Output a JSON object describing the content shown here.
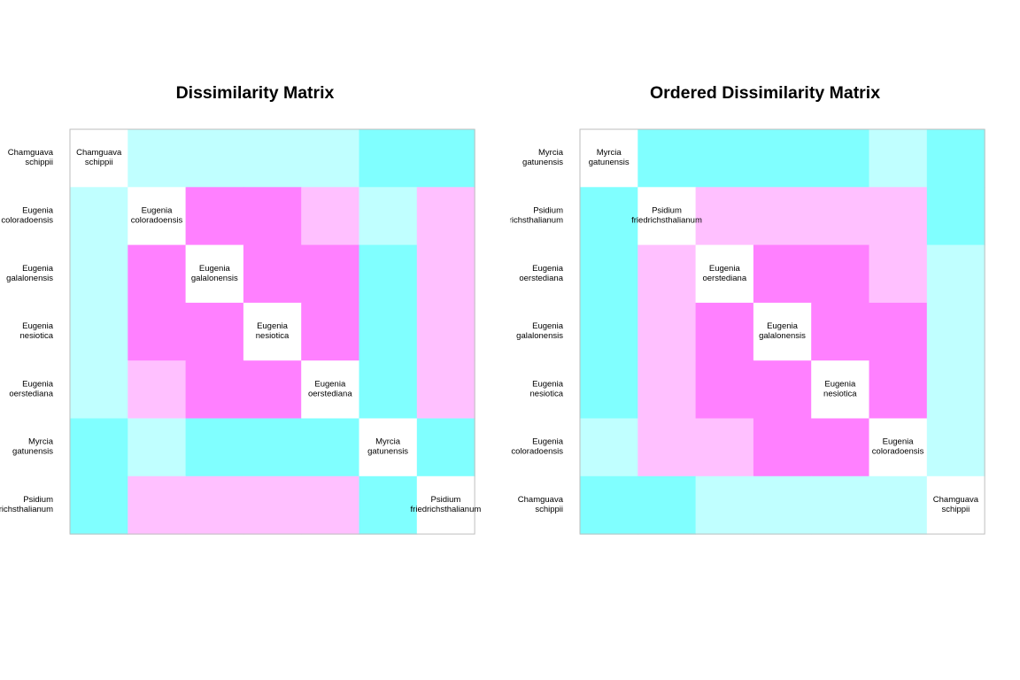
{
  "colors": {
    "low": "#ff80ff",
    "low_mid": "#ffc0ff",
    "high_mid": "#c0ffff",
    "high": "#80ffff",
    "diagonal": "#ffffff",
    "frame": "#bebebe"
  },
  "chart_data": [
    {
      "type": "heatmap",
      "title": "Dissimilarity Matrix",
      "labels": [
        [
          "Chamguava",
          "schippii"
        ],
        [
          "Eugenia",
          "coloradoensis"
        ],
        [
          "Eugenia",
          "galalonensis"
        ],
        [
          "Eugenia",
          "nesiotica"
        ],
        [
          "Eugenia",
          "oerstediana"
        ],
        [
          "Myrcia",
          "gatunensis"
        ],
        [
          "Psidium",
          "friedrichsthalianum"
        ]
      ],
      "levels": [
        [
          0,
          3,
          3,
          3,
          3,
          4,
          4
        ],
        [
          3,
          0,
          1,
          1,
          2,
          3,
          2
        ],
        [
          3,
          1,
          0,
          1,
          1,
          4,
          2
        ],
        [
          3,
          1,
          1,
          0,
          1,
          4,
          2
        ],
        [
          3,
          2,
          1,
          1,
          0,
          4,
          2
        ],
        [
          4,
          3,
          4,
          4,
          4,
          0,
          4
        ],
        [
          4,
          2,
          2,
          2,
          2,
          4,
          0
        ]
      ]
    },
    {
      "type": "heatmap",
      "title": "Ordered Dissimilarity Matrix",
      "labels": [
        [
          "Myrcia",
          "gatunensis"
        ],
        [
          "Psidium",
          "friedrichsthalianum"
        ],
        [
          "Eugenia",
          "oerstediana"
        ],
        [
          "Eugenia",
          "galalonensis"
        ],
        [
          "Eugenia",
          "nesiotica"
        ],
        [
          "Eugenia",
          "coloradoensis"
        ],
        [
          "Chamguava",
          "schippii"
        ]
      ],
      "levels": [
        [
          0,
          4,
          4,
          4,
          4,
          3,
          4
        ],
        [
          4,
          0,
          2,
          2,
          2,
          2,
          4
        ],
        [
          4,
          2,
          0,
          1,
          1,
          2,
          3
        ],
        [
          4,
          2,
          1,
          0,
          1,
          1,
          3
        ],
        [
          4,
          2,
          1,
          1,
          0,
          1,
          3
        ],
        [
          3,
          2,
          2,
          1,
          1,
          0,
          3
        ],
        [
          4,
          4,
          3,
          3,
          3,
          3,
          0
        ]
      ]
    }
  ]
}
